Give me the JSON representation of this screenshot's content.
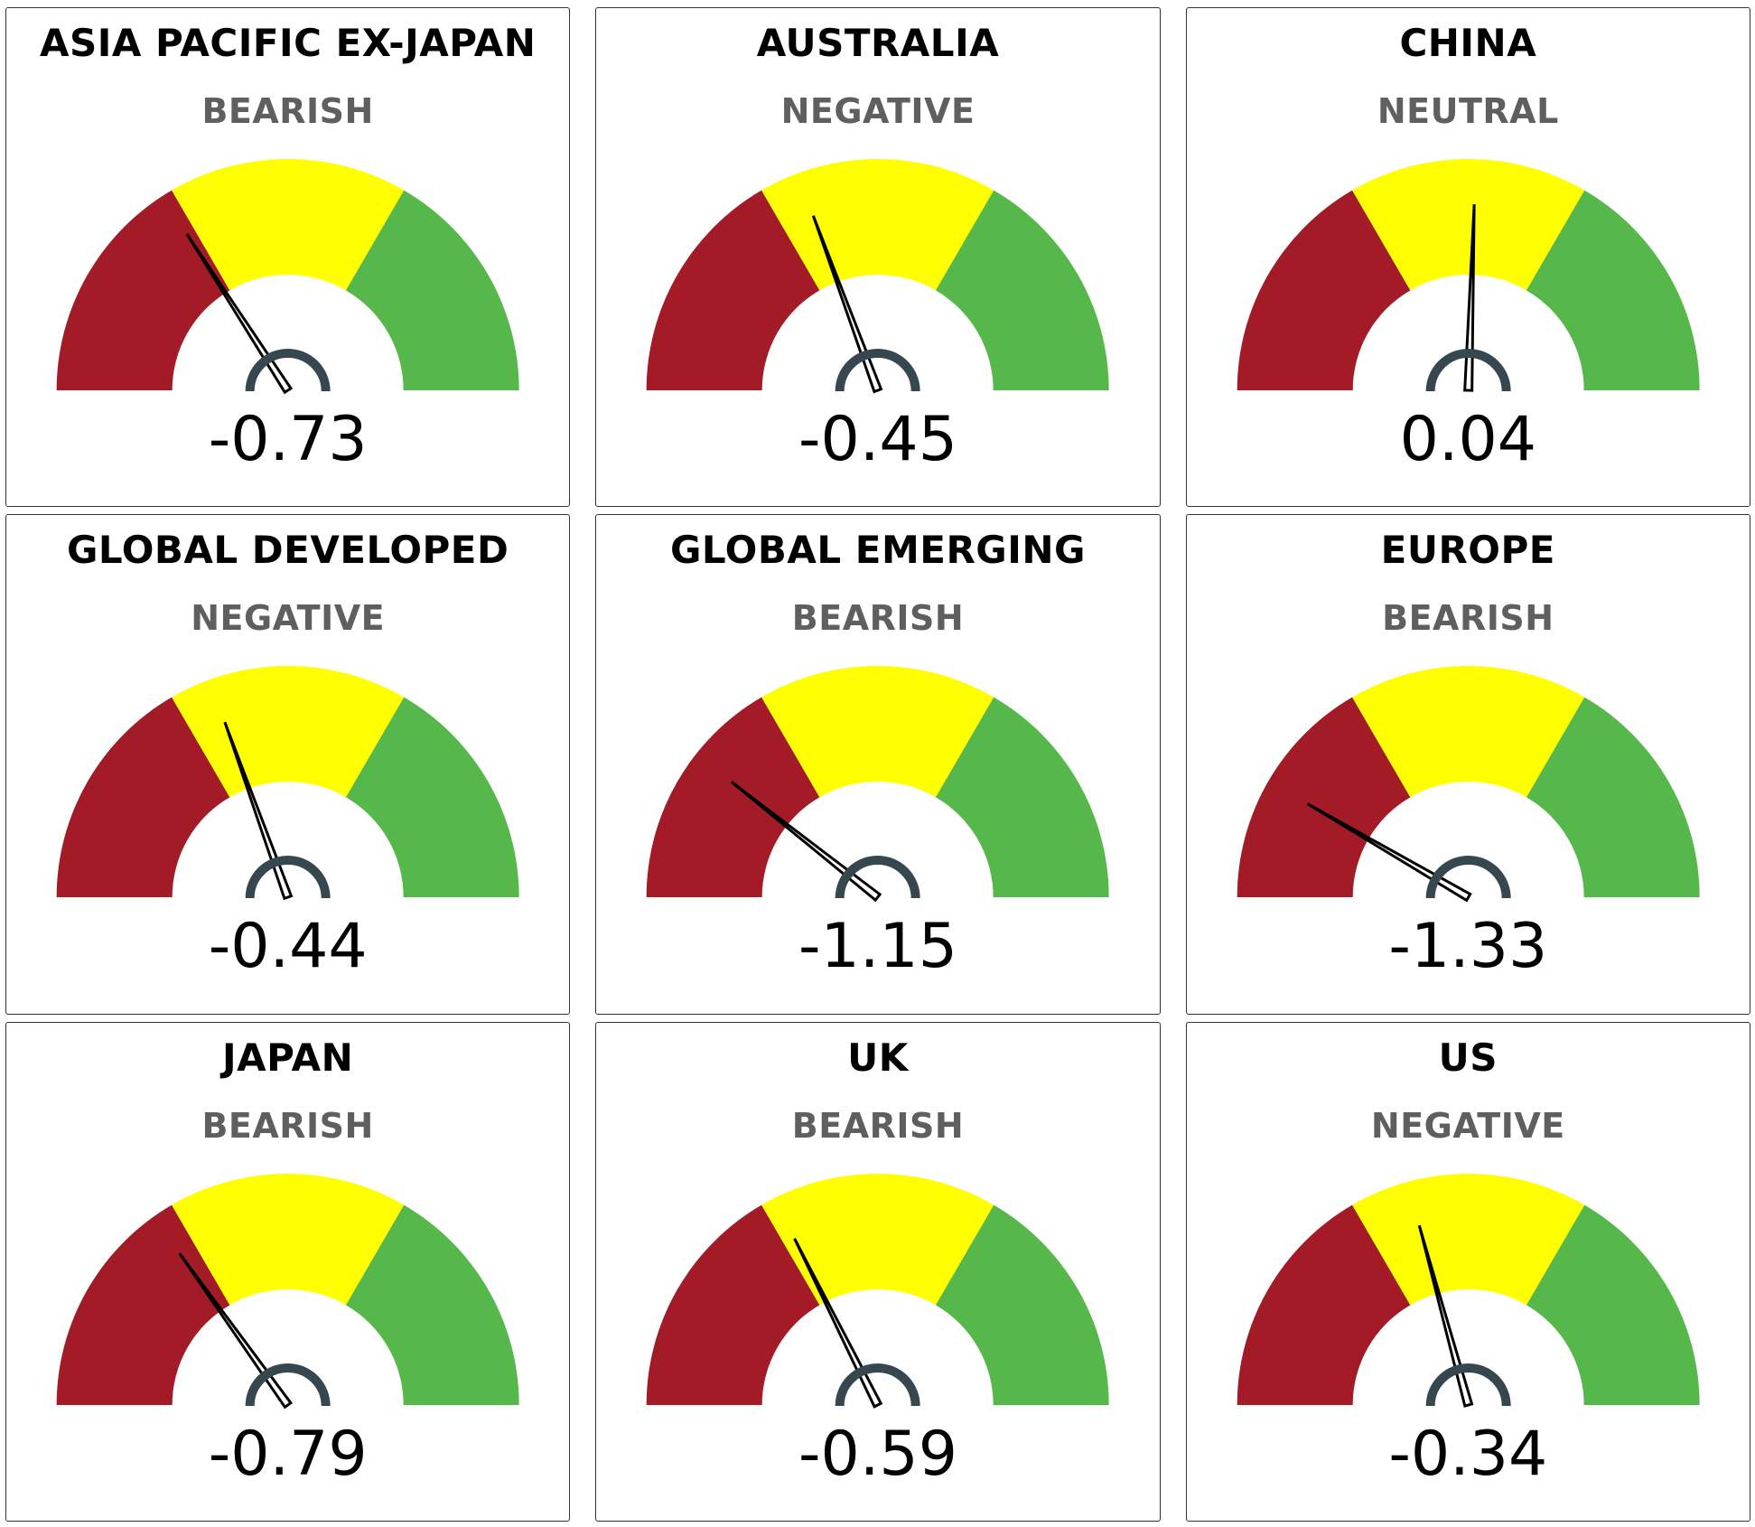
{
  "colors": {
    "bearish_zone": "#a31b27",
    "neutral_zone": "#ffff00",
    "bullish_zone": "#56b84a",
    "needle": "#000000",
    "hub": "#37474f",
    "status_text": "#5f5f5f"
  },
  "chart_data": {
    "type": "gauge",
    "range": [
      -2,
      2
    ],
    "zones": [
      {
        "from": -2,
        "to": -0.67,
        "color": "#a31b27"
      },
      {
        "from": -0.67,
        "to": 0.67,
        "color": "#ffff00"
      },
      {
        "from": 0.67,
        "to": 2,
        "color": "#56b84a"
      }
    ],
    "gauges": [
      {
        "title": "ASIA PACIFIC EX-JAPAN",
        "status": "BEARISH",
        "value": -0.73,
        "label": "-0.73"
      },
      {
        "title": "AUSTRALIA",
        "status": "NEGATIVE",
        "value": -0.45,
        "label": "-0.45"
      },
      {
        "title": "CHINA",
        "status": "NEUTRAL",
        "value": 0.04,
        "label": "0.04"
      },
      {
        "title": "GLOBAL DEVELOPED",
        "status": "NEGATIVE",
        "value": -0.44,
        "label": "-0.44"
      },
      {
        "title": "GLOBAL EMERGING",
        "status": "BEARISH",
        "value": -1.15,
        "label": "-1.15"
      },
      {
        "title": "EUROPE",
        "status": "BEARISH",
        "value": -1.33,
        "label": "-1.33"
      },
      {
        "title": "JAPAN",
        "status": "BEARISH",
        "value": -0.79,
        "label": "-0.79"
      },
      {
        "title": "UK",
        "status": "BEARISH",
        "value": -0.59,
        "label": "-0.59"
      },
      {
        "title": "US",
        "status": "NEGATIVE",
        "value": -0.34,
        "label": "-0.34"
      }
    ]
  }
}
